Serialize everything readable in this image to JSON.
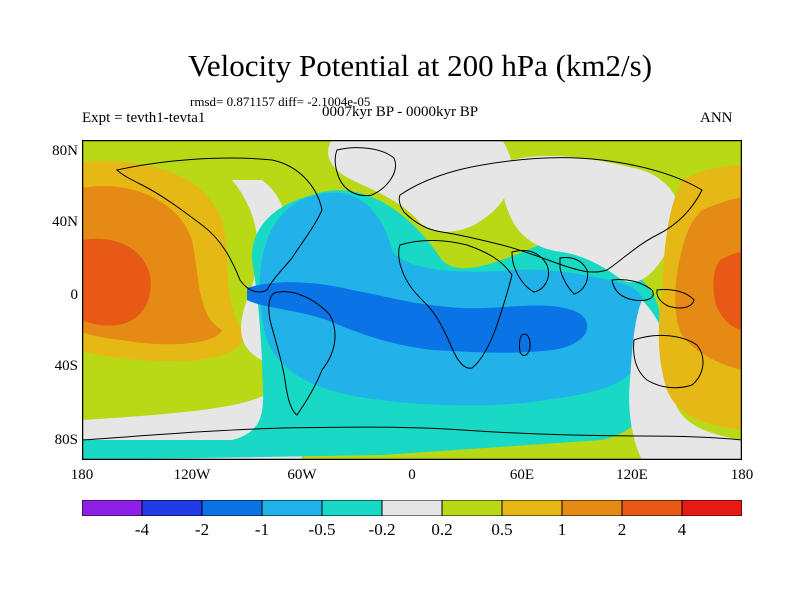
{
  "title": "Velocity Potential at 200 hPa (km2/s)",
  "stats_line": "rmsd= 0.871157 diff= -2.1004e-05",
  "experiment": "Expt = tevth1-tevta1",
  "subtitle": "0007kyr BP - 0000kyr BP",
  "season": "ANN",
  "axes": {
    "y_ticks": [
      "80N",
      "40N",
      "0",
      "40S",
      "80S"
    ],
    "x_ticks": [
      "180",
      "120W",
      "60W",
      "0",
      "60E",
      "120E",
      "180"
    ]
  },
  "colorbar": {
    "labels": [
      "-4",
      "-2",
      "-1",
      "-0.5",
      "-0.2",
      "0.2",
      "0.5",
      "1",
      "2",
      "4"
    ],
    "colors": [
      "#8d1fe6",
      "#1f3ae6",
      "#0a73e6",
      "#22b2ea",
      "#17d9c4",
      "#e6e6e6",
      "#b9d916",
      "#e6b815",
      "#e68a16",
      "#e65a16",
      "#e61a16"
    ]
  },
  "palette": {
    "ocean_neutral": "#e6e6e6",
    "blue_dark": "#0a73e6",
    "blue_mid": "#22b2ea",
    "teal": "#17d9c4",
    "lime": "#b9d916",
    "gold": "#e6b815",
    "orange": "#e68a16",
    "red_orange": "#e65a16",
    "coastline": "#000000"
  }
}
